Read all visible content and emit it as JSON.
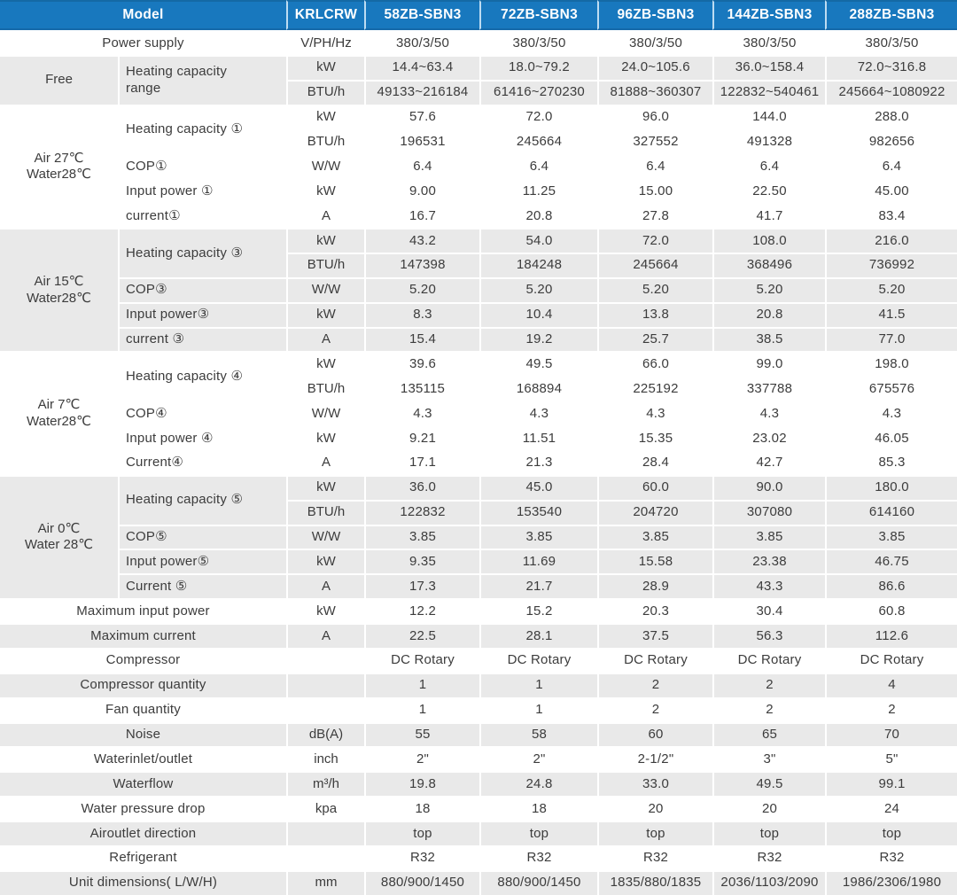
{
  "colors": {
    "header_bg": "#1878be",
    "header_text": "#ffffff",
    "stripe": "#e9e9e9",
    "text": "#3c3c3c"
  },
  "table": {
    "header": {
      "model_label": "Model",
      "unit_header": "KRLCRW",
      "models": [
        "58ZB-SBN3",
        "72ZB-SBN3",
        "96ZB-SBN3",
        "144ZB-SBN3",
        "288ZB-SBN3"
      ]
    },
    "sections": [
      {
        "section": null,
        "shaded": false,
        "params": [
          {
            "label": "Power supply",
            "rows": [
              {
                "unit": "V/PH/Hz",
                "values": [
                  "380/3/50",
                  "380/3/50",
                  "380/3/50",
                  "380/3/50",
                  "380/3/50"
                ]
              }
            ]
          }
        ]
      },
      {
        "section": "Free",
        "shaded": true,
        "params": [
          {
            "label": "Heating capacity\nrange",
            "align": "left",
            "rows": [
              {
                "unit": "kW",
                "values": [
                  "14.4~63.4",
                  "18.0~79.2",
                  "24.0~105.6",
                  "36.0~158.4",
                  "72.0~316.8"
                ]
              },
              {
                "unit": "BTU/h",
                "values": [
                  "49133~216184",
                  "61416~270230",
                  "81888~360307",
                  "122832~540461",
                  "245664~1080922"
                ]
              }
            ]
          }
        ]
      },
      {
        "section": "Air 27℃\nWater28℃",
        "shaded": false,
        "params": [
          {
            "label": "Heating capacity ①",
            "align": "left",
            "rows": [
              {
                "unit": "kW",
                "values": [
                  "57.6",
                  "72.0",
                  "96.0",
                  "144.0",
                  "288.0"
                ]
              },
              {
                "unit": "BTU/h",
                "values": [
                  "196531",
                  "245664",
                  "327552",
                  "491328",
                  "982656"
                ]
              }
            ]
          },
          {
            "label": "COP①",
            "align": "left",
            "rows": [
              {
                "unit": "W/W",
                "values": [
                  "6.4",
                  "6.4",
                  "6.4",
                  "6.4",
                  "6.4"
                ]
              }
            ]
          },
          {
            "label": "Input power ①",
            "align": "left",
            "rows": [
              {
                "unit": "kW",
                "values": [
                  "9.00",
                  "11.25",
                  "15.00",
                  "22.50",
                  "45.00"
                ]
              }
            ]
          },
          {
            "label": "current①",
            "align": "left",
            "rows": [
              {
                "unit": "A",
                "values": [
                  "16.7",
                  "20.8",
                  "27.8",
                  "41.7",
                  "83.4"
                ]
              }
            ]
          }
        ]
      },
      {
        "section": "Air 15℃\nWater28℃",
        "shaded": true,
        "params": [
          {
            "label": "Heating capacity ③",
            "align": "left",
            "rows": [
              {
                "unit": "kW",
                "values": [
                  "43.2",
                  "54.0",
                  "72.0",
                  "108.0",
                  "216.0"
                ]
              },
              {
                "unit": "BTU/h",
                "values": [
                  "147398",
                  "184248",
                  "245664",
                  "368496",
                  "736992"
                ]
              }
            ]
          },
          {
            "label": "COP③",
            "align": "left",
            "rows": [
              {
                "unit": "W/W",
                "values": [
                  "5.20",
                  "5.20",
                  "5.20",
                  "5.20",
                  "5.20"
                ]
              }
            ]
          },
          {
            "label": "Input power③",
            "align": "left",
            "rows": [
              {
                "unit": "kW",
                "values": [
                  "8.3",
                  "10.4",
                  "13.8",
                  "20.8",
                  "41.5"
                ]
              }
            ]
          },
          {
            "label": "current ③",
            "align": "left",
            "rows": [
              {
                "unit": "A",
                "values": [
                  "15.4",
                  "19.2",
                  "25.7",
                  "38.5",
                  "77.0"
                ]
              }
            ]
          }
        ]
      },
      {
        "section": "Air 7℃\nWater28℃",
        "shaded": false,
        "params": [
          {
            "label": "Heating capacity ④",
            "align": "left",
            "rows": [
              {
                "unit": "kW",
                "values": [
                  "39.6",
                  "49.5",
                  "66.0",
                  "99.0",
                  "198.0"
                ]
              },
              {
                "unit": "BTU/h",
                "values": [
                  "135115",
                  "168894",
                  "225192",
                  "337788",
                  "675576"
                ]
              }
            ]
          },
          {
            "label": "COP④",
            "align": "left",
            "rows": [
              {
                "unit": "W/W",
                "values": [
                  "4.3",
                  "4.3",
                  "4.3",
                  "4.3",
                  "4.3"
                ]
              }
            ]
          },
          {
            "label": "Input power ④",
            "align": "left",
            "rows": [
              {
                "unit": "kW",
                "values": [
                  "9.21",
                  "11.51",
                  "15.35",
                  "23.02",
                  "46.05"
                ]
              }
            ]
          },
          {
            "label": "Current④",
            "align": "left",
            "rows": [
              {
                "unit": "A",
                "values": [
                  "17.1",
                  "21.3",
                  "28.4",
                  "42.7",
                  "85.3"
                ]
              }
            ]
          }
        ]
      },
      {
        "section": "Air 0℃\nWater 28℃",
        "shaded": true,
        "params": [
          {
            "label": "Heating capacity ⑤",
            "align": "left",
            "rows": [
              {
                "unit": "kW",
                "values": [
                  "36.0",
                  "45.0",
                  "60.0",
                  "90.0",
                  "180.0"
                ]
              },
              {
                "unit": "BTU/h",
                "values": [
                  "122832",
                  "153540",
                  "204720",
                  "307080",
                  "614160"
                ]
              }
            ]
          },
          {
            "label": "COP⑤",
            "align": "left",
            "rows": [
              {
                "unit": "W/W",
                "values": [
                  "3.85",
                  "3.85",
                  "3.85",
                  "3.85",
                  "3.85"
                ]
              }
            ]
          },
          {
            "label": "Input power⑤",
            "align": "left",
            "rows": [
              {
                "unit": "kW",
                "values": [
                  "9.35",
                  "11.69",
                  "15.58",
                  "23.38",
                  "46.75"
                ]
              }
            ]
          },
          {
            "label": "Current ⑤",
            "align": "left",
            "rows": [
              {
                "unit": "A",
                "values": [
                  "17.3",
                  "21.7",
                  "28.9",
                  "43.3",
                  "86.6"
                ]
              }
            ]
          }
        ]
      },
      {
        "section": null,
        "shaded": false,
        "params": [
          {
            "label": "Maximum input power",
            "rows": [
              {
                "unit": "kW",
                "values": [
                  "12.2",
                  "15.2",
                  "20.3",
                  "30.4",
                  "60.8"
                ]
              }
            ]
          }
        ]
      },
      {
        "section": null,
        "shaded": true,
        "params": [
          {
            "label": "Maximum current",
            "rows": [
              {
                "unit": "A",
                "values": [
                  "22.5",
                  "28.1",
                  "37.5",
                  "56.3",
                  "112.6"
                ]
              }
            ]
          }
        ]
      },
      {
        "section": null,
        "shaded": false,
        "params": [
          {
            "label": "Compressor",
            "rows": [
              {
                "unit": "",
                "values": [
                  "DC Rotary",
                  "DC Rotary",
                  "DC Rotary",
                  "DC Rotary",
                  "DC Rotary"
                ]
              }
            ]
          }
        ]
      },
      {
        "section": null,
        "shaded": true,
        "params": [
          {
            "label": "Compressor quantity",
            "rows": [
              {
                "unit": "",
                "values": [
                  "1",
                  "1",
                  "2",
                  "2",
                  "4"
                ]
              }
            ]
          }
        ]
      },
      {
        "section": null,
        "shaded": false,
        "params": [
          {
            "label": "Fan quantity",
            "rows": [
              {
                "unit": "",
                "values": [
                  "1",
                  "1",
                  "2",
                  "2",
                  "2"
                ]
              }
            ]
          }
        ]
      },
      {
        "section": null,
        "shaded": true,
        "params": [
          {
            "label": "Noise",
            "rows": [
              {
                "unit": "dB(A)",
                "values": [
                  "55",
                  "58",
                  "60",
                  "65",
                  "70"
                ]
              }
            ]
          }
        ]
      },
      {
        "section": null,
        "shaded": false,
        "params": [
          {
            "label": "Waterinlet/outlet",
            "rows": [
              {
                "unit": "inch",
                "values": [
                  "2\"",
                  "2\"",
                  "2-1/2\"",
                  "3\"",
                  "5\""
                ]
              }
            ]
          }
        ]
      },
      {
        "section": null,
        "shaded": true,
        "params": [
          {
            "label": "Waterflow",
            "rows": [
              {
                "unit": "m³/h",
                "values": [
                  "19.8",
                  "24.8",
                  "33.0",
                  "49.5",
                  "99.1"
                ]
              }
            ]
          }
        ]
      },
      {
        "section": null,
        "shaded": false,
        "params": [
          {
            "label": "Water pressure drop",
            "rows": [
              {
                "unit": "kpa",
                "values": [
                  "18",
                  "18",
                  "20",
                  "20",
                  "24"
                ]
              }
            ]
          }
        ]
      },
      {
        "section": null,
        "shaded": true,
        "params": [
          {
            "label": "Airoutlet direction",
            "rows": [
              {
                "unit": "",
                "values": [
                  "top",
                  "top",
                  "top",
                  "top",
                  "top"
                ]
              }
            ]
          }
        ]
      },
      {
        "section": null,
        "shaded": false,
        "params": [
          {
            "label": "Refrigerant",
            "rows": [
              {
                "unit": "",
                "values": [
                  "R32",
                  "R32",
                  "R32",
                  "R32",
                  "R32"
                ]
              }
            ]
          }
        ]
      },
      {
        "section": null,
        "shaded": true,
        "params": [
          {
            "label": "Unit dimensions( L/W/H)",
            "rows": [
              {
                "unit": "mm",
                "values": [
                  "880/900/1450",
                  "880/900/1450",
                  "1835/880/1835",
                  "2036/1103/2090",
                  "1986/2306/1980"
                ]
              }
            ]
          }
        ]
      }
    ]
  }
}
